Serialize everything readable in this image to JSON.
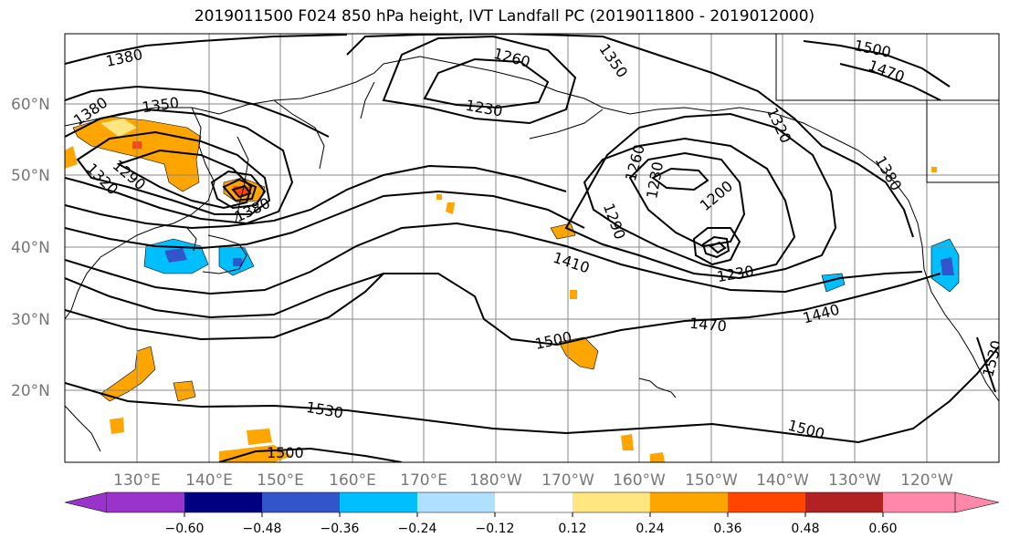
{
  "title": "2019011500 F024 850 hPa height, IVT Landfall PC (2019011800 - 2019012000)",
  "lat_labels": [
    "60°N",
    "50°N",
    "40°N",
    "30°N",
    "20°N"
  ],
  "lon_labels": [
    "130°E",
    "140°E",
    "150°E",
    "160°E",
    "170°E",
    "180°W",
    "170°W",
    "160°W",
    "150°W",
    "140°W",
    "130°W",
    "120°W"
  ],
  "colorbar": {
    "ticks": [
      "−0.60",
      "−0.48",
      "−0.36",
      "−0.24",
      "−0.12",
      "0.12",
      "0.24",
      "0.36",
      "0.48",
      "0.60"
    ],
    "colors": [
      "#9933cc",
      "#000080",
      "#3355cc",
      "#00bfff",
      "#b0e0ff",
      "#ffffff",
      "#ffe680",
      "#ffa500",
      "#ff4500",
      "#b22222",
      "#ff88aa",
      "#ff88aa"
    ]
  },
  "contour_labels": [
    {
      "text": "1380",
      "name": "label-1380-a"
    },
    {
      "text": "1380",
      "name": "label-1380-b"
    },
    {
      "text": "1350",
      "name": "label-1350"
    },
    {
      "text": "1320",
      "name": "label-1320-a"
    },
    {
      "text": "1290",
      "name": "label-1290-a"
    },
    {
      "text": "1380",
      "name": "label-1380-c"
    },
    {
      "text": "1260",
      "name": "label-1260-a"
    },
    {
      "text": "1230",
      "name": "label-1230-a"
    },
    {
      "text": "1350",
      "name": "label-1350-b"
    },
    {
      "text": "1500",
      "name": "label-1500-a"
    },
    {
      "text": "1470",
      "name": "label-1470-a"
    },
    {
      "text": "1320",
      "name": "label-1320-b"
    },
    {
      "text": "1380",
      "name": "label-1380-d"
    },
    {
      "text": "1260",
      "name": "label-1260-b"
    },
    {
      "text": "1230",
      "name": "label-1230-b"
    },
    {
      "text": "1200",
      "name": "label-1200"
    },
    {
      "text": "1290",
      "name": "label-1290-b"
    },
    {
      "text": "1230",
      "name": "label-1230-c"
    },
    {
      "text": "1410",
      "name": "label-1410"
    },
    {
      "text": "1440",
      "name": "label-1440"
    },
    {
      "text": "1470",
      "name": "label-1470-b"
    },
    {
      "text": "1500",
      "name": "label-1500-b"
    },
    {
      "text": "1530",
      "name": "label-1530-a"
    },
    {
      "text": "1500",
      "name": "label-1500-c"
    },
    {
      "text": "1530",
      "name": "label-1530-b"
    },
    {
      "text": "1500",
      "name": "label-1500-d"
    }
  ]
}
